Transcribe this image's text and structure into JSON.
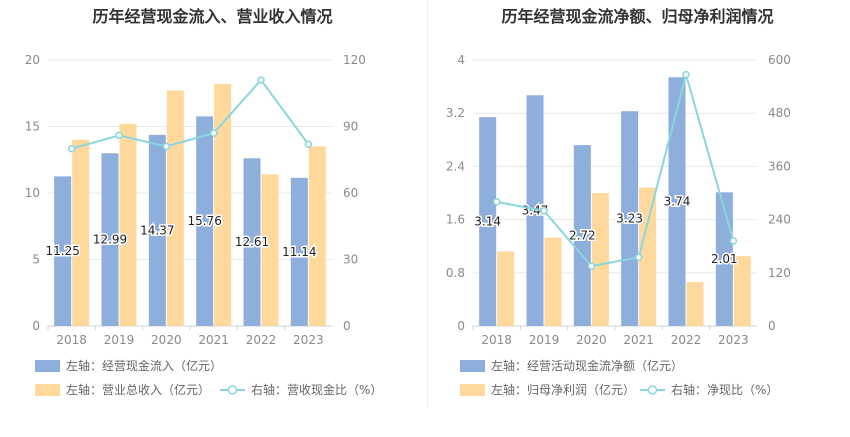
{
  "colors": {
    "bar_blue": "#8eaedc",
    "bar_orange": "#ffd99b",
    "line_cyan": "#8ad6df",
    "grid": "#e6e9ee",
    "text_gray": "#8a8a8a"
  },
  "chart_data": [
    {
      "type": "bar",
      "title": "历年经营现金流入、营业收入情况",
      "categories": [
        "2018",
        "2019",
        "2020",
        "2021",
        "2022",
        "2023"
      ],
      "y_left": {
        "ticks": [
          "0",
          "5",
          "10",
          "15",
          "20"
        ],
        "range": [
          0,
          20
        ]
      },
      "y_right": {
        "ticks": [
          "0",
          "30",
          "60",
          "90",
          "120"
        ],
        "range": [
          0,
          120
        ]
      },
      "series": [
        {
          "name": "左轴：经营现金流入（亿元）",
          "axis": "left",
          "kind": "bar",
          "color": "#8eaedc",
          "values": [
            11.25,
            12.99,
            14.37,
            15.76,
            12.61,
            11.14
          ],
          "labels": [
            "11.25",
            "12.99",
            "14.37",
            "15.76",
            "12.61",
            "11.14"
          ]
        },
        {
          "name": "左轴：营业总收入（亿元）",
          "axis": "left",
          "kind": "bar",
          "color": "#ffd99b",
          "values": [
            14.0,
            15.2,
            17.7,
            18.2,
            11.4,
            13.5
          ]
        },
        {
          "name": "右轴：营收现金比（%）",
          "axis": "right",
          "kind": "line",
          "color": "#8ad6df",
          "values": [
            80,
            86,
            81,
            87,
            111,
            82
          ]
        }
      ]
    },
    {
      "type": "bar",
      "title": "历年经营现金流净额、归母净利润情况",
      "categories": [
        "2018",
        "2019",
        "2020",
        "2021",
        "2022",
        "2023"
      ],
      "y_left": {
        "ticks": [
          "0",
          "0.8",
          "1.6",
          "2.4",
          "3.2",
          "4"
        ],
        "range": [
          0,
          4
        ]
      },
      "y_right": {
        "ticks": [
          "0",
          "120",
          "240",
          "360",
          "480",
          "600"
        ],
        "range": [
          0,
          600
        ]
      },
      "series": [
        {
          "name": "左轴：经营活动现金流净额（亿元）",
          "axis": "left",
          "kind": "bar",
          "color": "#8eaedc",
          "values": [
            3.14,
            3.47,
            2.72,
            3.23,
            3.74,
            2.01
          ],
          "labels": [
            "3.14",
            "3.47",
            "2.72",
            "3.23",
            "3.74",
            "2.01"
          ]
        },
        {
          "name": "左轴：归母净利润（亿元）",
          "axis": "left",
          "kind": "bar",
          "color": "#ffd99b",
          "values": [
            1.12,
            1.33,
            2.0,
            2.08,
            0.66,
            1.05
          ]
        },
        {
          "name": "右轴：净现比（%）",
          "axis": "right",
          "kind": "line",
          "color": "#8ad6df",
          "values": [
            280,
            260,
            135,
            155,
            567,
            192
          ]
        }
      ]
    }
  ]
}
